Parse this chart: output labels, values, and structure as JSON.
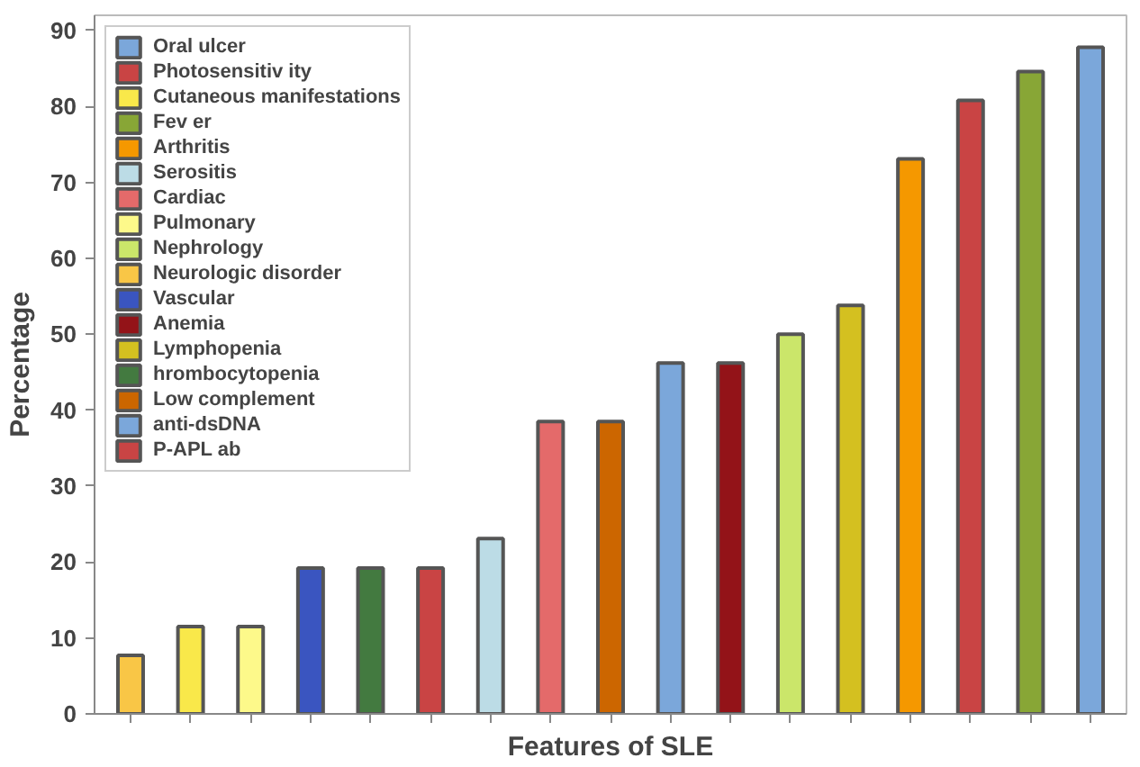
{
  "chart_data": {
    "type": "bar",
    "xlabel": "Features of SLE",
    "ylabel": "Percentage",
    "categories": [
      null,
      null,
      null,
      null,
      null,
      null,
      null,
      null,
      null,
      null,
      null,
      null,
      null,
      null,
      null,
      null,
      null
    ],
    "ylim": [
      0,
      92
    ],
    "yticks": [
      0,
      10,
      20,
      30,
      40,
      50,
      60,
      70,
      80,
      90
    ],
    "grid": false,
    "legend": "top left",
    "series": [
      {
        "name": "Oral ulcer",
        "color": "#7ba7da",
        "values": [
          null,
          null,
          null,
          null,
          null,
          null,
          null,
          null,
          null,
          46.2,
          null,
          null,
          null,
          null,
          null,
          null,
          null
        ]
      },
      {
        "name": "Photosensitiv ity",
        "color": "#c94444",
        "values": [
          null,
          null,
          null,
          null,
          null,
          null,
          null,
          null,
          null,
          null,
          null,
          null,
          null,
          null,
          80.8,
          null,
          null
        ]
      },
      {
        "name": "Cutaneous manifestations",
        "color": "#f9e84a",
        "values": [
          null,
          11.5,
          null,
          null,
          null,
          null,
          null,
          null,
          null,
          null,
          null,
          null,
          null,
          null,
          null,
          null,
          null
        ]
      },
      {
        "name": "Fev er",
        "color": "#88a636",
        "values": [
          null,
          null,
          null,
          null,
          null,
          null,
          null,
          null,
          null,
          null,
          null,
          null,
          null,
          null,
          null,
          84.6,
          null
        ]
      },
      {
        "name": "Arthritis",
        "color": "#f59800",
        "values": [
          null,
          null,
          null,
          null,
          null,
          null,
          null,
          null,
          null,
          null,
          null,
          null,
          null,
          73.1,
          null,
          null,
          null
        ]
      },
      {
        "name": "Serositis",
        "color": "#bcdce6",
        "values": [
          null,
          null,
          null,
          null,
          null,
          null,
          23.1,
          null,
          null,
          null,
          null,
          null,
          null,
          null,
          null,
          null,
          null
        ]
      },
      {
        "name": "Cardiac",
        "color": "#e46a6a",
        "values": [
          null,
          null,
          null,
          null,
          null,
          null,
          null,
          38.5,
          null,
          null,
          null,
          null,
          null,
          null,
          null,
          null,
          null
        ]
      },
      {
        "name": "Pulmonary",
        "color": "#fdf98a",
        "values": [
          null,
          null,
          11.5,
          null,
          null,
          null,
          null,
          null,
          null,
          null,
          null,
          null,
          null,
          null,
          null,
          null,
          null
        ]
      },
      {
        "name": "Nephrology",
        "color": "#cbe66a",
        "values": [
          null,
          null,
          null,
          null,
          null,
          null,
          null,
          null,
          null,
          null,
          null,
          50,
          null,
          null,
          null,
          null,
          null
        ]
      },
      {
        "name": "Neurologic disorder",
        "color": "#f9c646",
        "values": [
          7.7,
          null,
          null,
          null,
          null,
          null,
          null,
          null,
          null,
          null,
          null,
          null,
          null,
          null,
          null,
          null,
          null
        ]
      },
      {
        "name": "Vascular",
        "color": "#3a55c0",
        "values": [
          null,
          null,
          null,
          19.2,
          null,
          null,
          null,
          null,
          null,
          null,
          null,
          null,
          null,
          null,
          null,
          null,
          null
        ]
      },
      {
        "name": "Anemia",
        "color": "#931318",
        "values": [
          null,
          null,
          null,
          null,
          null,
          null,
          null,
          null,
          null,
          null,
          46.2,
          null,
          null,
          null,
          null,
          null,
          null
        ]
      },
      {
        "name": "Lymphopenia",
        "color": "#d4c020",
        "values": [
          null,
          null,
          null,
          null,
          null,
          null,
          null,
          null,
          null,
          null,
          null,
          null,
          53.8,
          null,
          null,
          null,
          null
        ]
      },
      {
        "name": "hrombocytopenia",
        "color": "#437a40",
        "values": [
          null,
          null,
          null,
          null,
          19.2,
          null,
          null,
          null,
          null,
          null,
          null,
          null,
          null,
          null,
          null,
          null,
          null
        ]
      },
      {
        "name": "Low complement",
        "color": "#cc6600",
        "values": [
          null,
          null,
          null,
          null,
          null,
          null,
          null,
          null,
          38.5,
          null,
          null,
          null,
          null,
          null,
          null,
          null,
          null
        ]
      },
      {
        "name": "anti-dsDNA",
        "color": "#7ba7da",
        "values": [
          null,
          null,
          null,
          null,
          null,
          null,
          null,
          null,
          null,
          null,
          null,
          null,
          null,
          null,
          null,
          null,
          87.8
        ]
      },
      {
        "name": "P-APL ab",
        "color": "#c94444",
        "values": [
          null,
          null,
          null,
          null,
          null,
          19.2,
          null,
          null,
          null,
          null,
          null,
          null,
          null,
          null,
          null,
          null,
          null
        ]
      }
    ]
  }
}
